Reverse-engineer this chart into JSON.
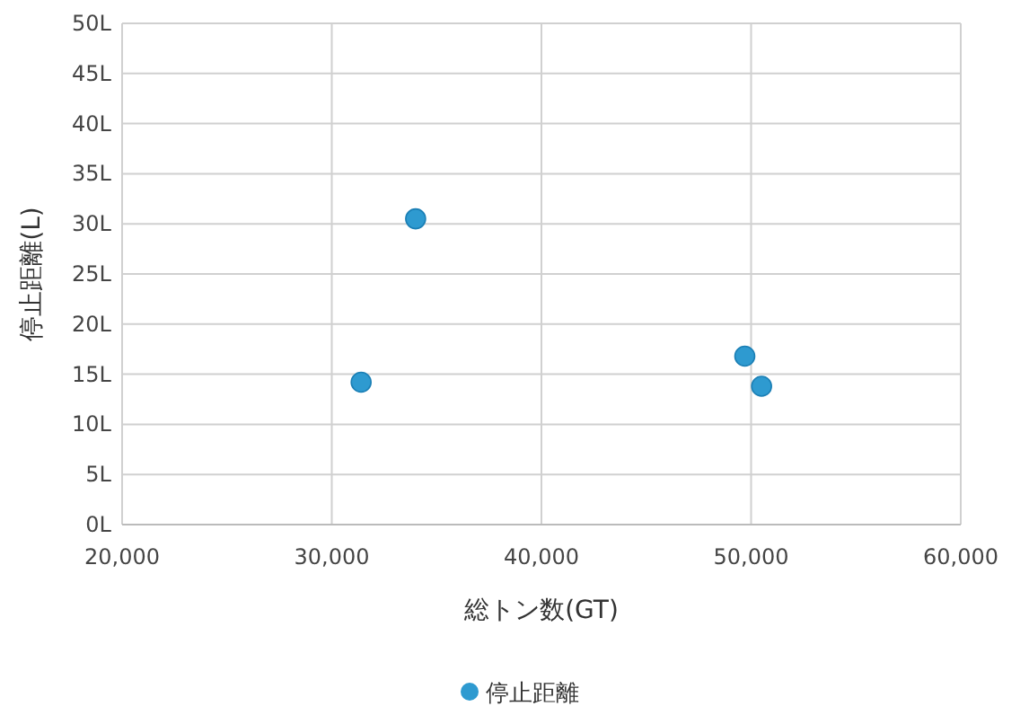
{
  "chart_data": {
    "type": "scatter",
    "xlabel": "総トン数(GT)",
    "ylabel": "停止距離(L)",
    "xlim": [
      20000,
      60000
    ],
    "xticks": [
      {
        "value": 20000,
        "label": "20,000"
      },
      {
        "value": 30000,
        "label": "30,000"
      },
      {
        "value": 40000,
        "label": "40,000"
      },
      {
        "value": 50000,
        "label": "50,000"
      },
      {
        "value": 60000,
        "label": "60,000"
      }
    ],
    "ylim": [
      0,
      50
    ],
    "yticks": [
      {
        "value": 0,
        "label": "0L"
      },
      {
        "value": 5,
        "label": "5L"
      },
      {
        "value": 10,
        "label": "10L"
      },
      {
        "value": 15,
        "label": "15L"
      },
      {
        "value": 20,
        "label": "20L"
      },
      {
        "value": 25,
        "label": "25L"
      },
      {
        "value": 30,
        "label": "30L"
      },
      {
        "value": 35,
        "label": "35L"
      },
      {
        "value": 40,
        "label": "40L"
      },
      {
        "value": 45,
        "label": "45L"
      },
      {
        "value": 50,
        "label": "50L"
      }
    ],
    "grid": true,
    "legend": "bottom",
    "marker": "circle",
    "series": [
      {
        "name": "停止距離",
        "color": "#2e9ad0",
        "x": [
          31400,
          34000,
          49700,
          50500
        ],
        "values": [
          14.2,
          30.5,
          16.8,
          13.8
        ]
      }
    ]
  }
}
